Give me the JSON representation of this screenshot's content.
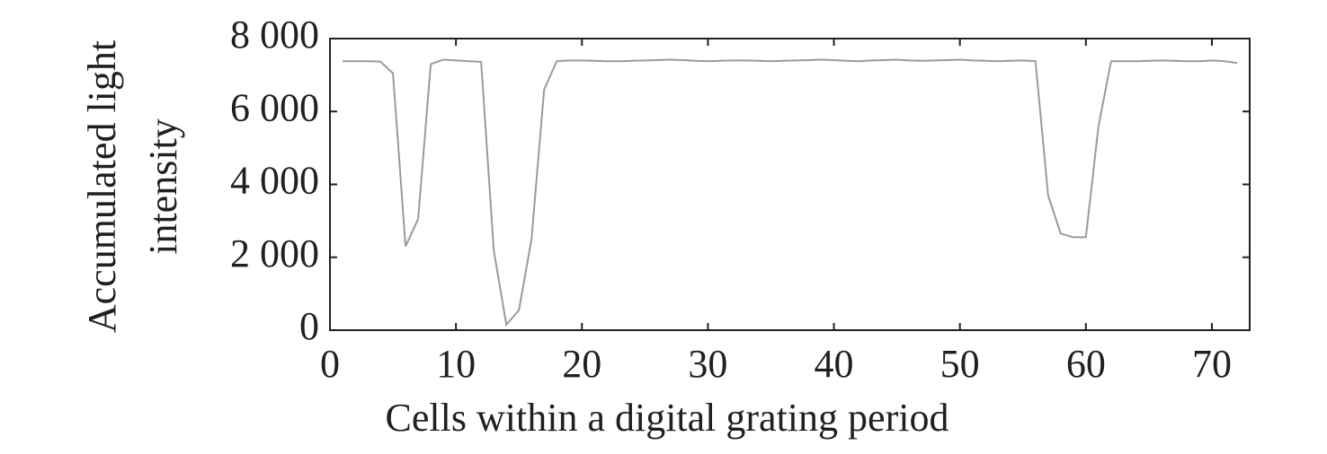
{
  "chart_data": {
    "type": "line",
    "xlabel": "Cells within a digital grating period",
    "ylabel": [
      "Accumulated light",
      "intensity"
    ],
    "x": [
      1,
      2,
      3,
      4,
      5,
      6,
      7,
      8,
      9,
      10,
      11,
      12,
      13,
      14,
      15,
      16,
      17,
      18,
      19,
      20,
      21,
      22,
      23,
      24,
      25,
      26,
      27,
      28,
      29,
      30,
      31,
      32,
      33,
      34,
      35,
      36,
      37,
      38,
      39,
      40,
      41,
      42,
      43,
      44,
      45,
      46,
      47,
      48,
      49,
      50,
      51,
      52,
      53,
      54,
      55,
      56,
      57,
      58,
      59,
      60,
      61,
      62,
      63,
      64,
      65,
      66,
      67,
      68,
      69,
      70,
      71,
      72
    ],
    "series": [
      {
        "color": "#9a9a9a",
        "values": [
          7380,
          7380,
          7380,
          7370,
          7050,
          2300,
          3050,
          7300,
          7420,
          7400,
          7380,
          7360,
          2200,
          150,
          550,
          2500,
          6600,
          7380,
          7400,
          7400,
          7390,
          7380,
          7380,
          7390,
          7400,
          7410,
          7420,
          7410,
          7390,
          7380,
          7390,
          7400,
          7400,
          7390,
          7380,
          7390,
          7400,
          7410,
          7420,
          7410,
          7390,
          7380,
          7400,
          7410,
          7420,
          7400,
          7390,
          7400,
          7410,
          7420,
          7400,
          7390,
          7380,
          7390,
          7400,
          7380,
          3700,
          2650,
          2550,
          2550,
          5600,
          7380,
          7380,
          7380,
          7390,
          7400,
          7390,
          7380,
          7380,
          7400,
          7380,
          7330
        ]
      }
    ],
    "xlim": [
      0,
      73
    ],
    "ylim": [
      0,
      8000
    ],
    "xticks": [
      0,
      10,
      20,
      30,
      40,
      50,
      60,
      70
    ],
    "yticks": [
      0,
      {
        "value": 2000,
        "label": "2 000"
      },
      {
        "value": 4000,
        "label": "4 000"
      },
      {
        "value": 6000,
        "label": "6 000"
      },
      {
        "value": 8000,
        "label": "8 000"
      }
    ]
  }
}
